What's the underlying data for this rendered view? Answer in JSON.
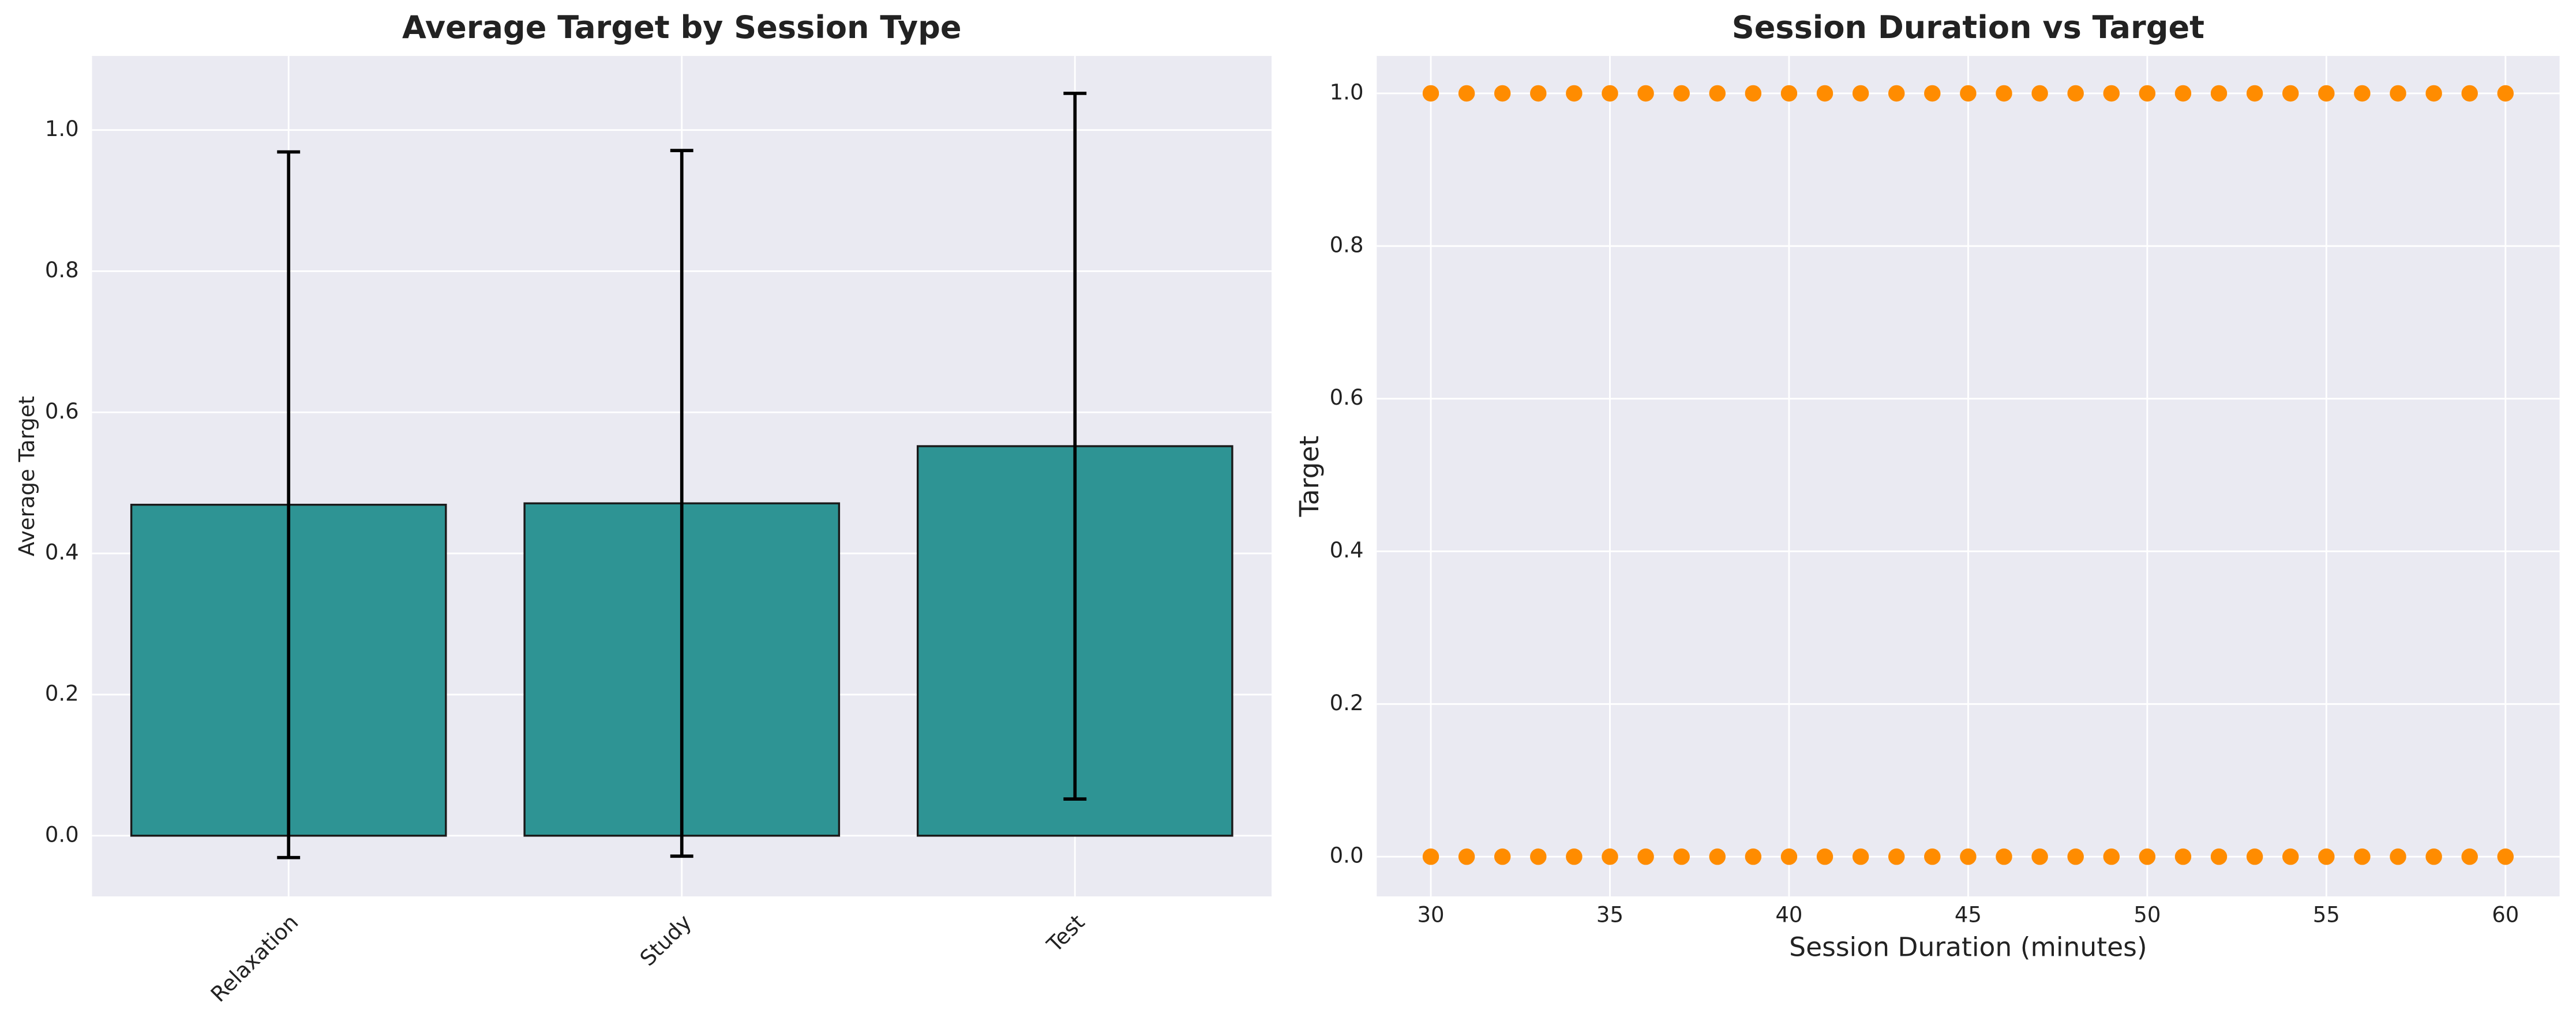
{
  "chart_data": [
    {
      "type": "bar",
      "title": "Average Target by Session Type",
      "ylabel": "Average Target",
      "categories": [
        "Relaxation",
        "Study",
        "Test"
      ],
      "values": [
        0.469,
        0.471,
        0.552
      ],
      "errors": [
        0.5,
        0.5,
        0.5
      ],
      "color": "#2e9494",
      "ylim": [
        -0.086,
        1.105
      ],
      "yticks": [
        {
          "value": 0,
          "label": "0.0"
        },
        0.2,
        0.4,
        0.6,
        0.8,
        {
          "value": 1,
          "label": "1.0"
        }
      ],
      "grid": true
    },
    {
      "type": "scatter",
      "title": "Session Duration vs Target",
      "xlabel": "Session Duration (minutes)",
      "ylabel": "Target",
      "color": "#ff8c00",
      "x": [
        30,
        31,
        32,
        33,
        34,
        35,
        36,
        37,
        38,
        39,
        40,
        41,
        42,
        43,
        44,
        45,
        46,
        47,
        48,
        49,
        50,
        51,
        52,
        53,
        54,
        55,
        56,
        57,
        58,
        59,
        60,
        30,
        31,
        32,
        33,
        34,
        35,
        36,
        37,
        38,
        39,
        40,
        41,
        42,
        43,
        44,
        45,
        46,
        47,
        48,
        49,
        50,
        51,
        52,
        53,
        54,
        55,
        56,
        57,
        58,
        59,
        60
      ],
      "y": [
        1,
        1,
        1,
        1,
        1,
        1,
        1,
        1,
        1,
        1,
        1,
        1,
        1,
        1,
        1,
        1,
        1,
        1,
        1,
        1,
        1,
        1,
        1,
        1,
        1,
        1,
        1,
        1,
        1,
        1,
        1,
        0,
        0,
        0,
        0,
        0,
        0,
        0,
        0,
        0,
        0,
        0,
        0,
        0,
        0,
        0,
        0,
        0,
        0,
        0,
        0,
        0,
        0,
        0,
        0,
        0,
        0,
        0,
        0,
        0,
        0,
        0
      ],
      "xlim": [
        28.49,
        61.51
      ],
      "ylim": [
        -0.052,
        1.049
      ],
      "xticks": [
        30,
        35,
        40,
        45,
        50,
        55,
        60
      ],
      "yticks": [
        {
          "value": 0,
          "label": "0.0"
        },
        0.2,
        0.4,
        0.6,
        0.8,
        {
          "value": 1,
          "label": "1.0"
        }
      ],
      "grid": true
    }
  ]
}
